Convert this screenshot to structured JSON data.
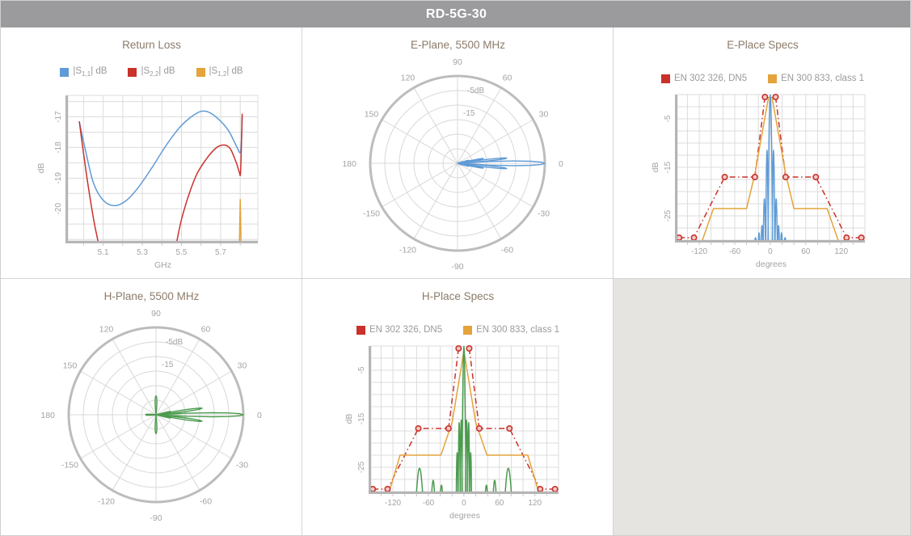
{
  "header": {
    "title": "RD-5G-30"
  },
  "colors": {
    "blue": "#5f9bd6",
    "red": "#c9322b",
    "orange": "#e4a33b",
    "green": "#4c9b4f",
    "grid": "#dcdcdc",
    "axis_bar": "#b5b5b5",
    "ring_thick": "#bcbcbc",
    "ring_thin": "#d8d8d8",
    "tick_text": "#a3a3a3",
    "title_text": "#8c7b6a",
    "legend_text": "#9a9a9a",
    "marker_fill": "#f2c9c5",
    "header_bg": "#9b9b9e",
    "empty_cell_bg": "#e6e4e1"
  },
  "chart_data": [
    {
      "id": "return_loss",
      "type": "line",
      "title": "Return Loss",
      "xlabel": "GHz",
      "ylabel": "dB",
      "xlim": [
        4.92,
        5.89
      ],
      "ylim": [
        -21.05,
        -16.3
      ],
      "xticks": [
        5.1,
        5.3,
        5.5,
        5.7
      ],
      "yticks": [
        -17,
        -18,
        -19,
        -20
      ],
      "xgrid": [
        5.0,
        5.1,
        5.2,
        5.3,
        5.4,
        5.5,
        5.6,
        5.7,
        5.8
      ],
      "ygrid": [
        -16.5,
        -17,
        -17.5,
        -18,
        -18.5,
        -19,
        -19.5,
        -20,
        -20.5,
        -21
      ],
      "legend": [
        {
          "label_pre": "|S",
          "label_sub": "1,1",
          "label_post": "| dB",
          "color": "blue"
        },
        {
          "label_pre": "|S",
          "label_sub": "2,2",
          "label_post": "| dB",
          "color": "red"
        },
        {
          "label_pre": "|S",
          "label_sub": "1,2",
          "label_post": "| dB",
          "color": "orange"
        }
      ],
      "series": [
        {
          "name": "S11",
          "color": "blue",
          "smooth": true,
          "points": [
            [
              4.978,
              -17.15
            ],
            [
              5.01,
              -18.1
            ],
            [
              5.05,
              -19.15
            ],
            [
              5.1,
              -19.72
            ],
            [
              5.16,
              -19.9
            ],
            [
              5.22,
              -19.72
            ],
            [
              5.28,
              -19.3
            ],
            [
              5.35,
              -18.65
            ],
            [
              5.42,
              -17.95
            ],
            [
              5.49,
              -17.35
            ],
            [
              5.55,
              -17.0
            ],
            [
              5.6,
              -16.82
            ],
            [
              5.64,
              -16.85
            ],
            [
              5.69,
              -17.08
            ],
            [
              5.74,
              -17.45
            ],
            [
              5.78,
              -17.95
            ],
            [
              5.8,
              -18.17
            ],
            [
              5.806,
              -17.8
            ],
            [
              5.81,
              -17.0
            ]
          ]
        },
        {
          "name": "S22",
          "color": "red",
          "smooth": true,
          "points": [
            [
              4.978,
              -17.15
            ],
            [
              5.0,
              -18.2
            ],
            [
              5.02,
              -19.1
            ],
            [
              5.05,
              -20.3
            ],
            [
              5.075,
              -21.1
            ]
          ]
        },
        {
          "name": "S22",
          "color": "red",
          "smooth": true,
          "points": [
            [
              5.475,
              -21.1
            ],
            [
              5.5,
              -20.35
            ],
            [
              5.54,
              -19.5
            ],
            [
              5.58,
              -18.85
            ],
            [
              5.63,
              -18.35
            ],
            [
              5.68,
              -18.0
            ],
            [
              5.72,
              -17.92
            ],
            [
              5.75,
              -18.05
            ],
            [
              5.78,
              -18.5
            ],
            [
              5.795,
              -18.8
            ],
            [
              5.802,
              -18.75
            ],
            [
              5.81,
              -16.9
            ]
          ]
        },
        {
          "name": "S12",
          "color": "orange",
          "smooth": false,
          "points": [
            [
              5.796,
              -21.1
            ],
            [
              5.8,
              -19.7
            ],
            [
              5.804,
              -21.1
            ]
          ]
        }
      ]
    },
    {
      "id": "e_plane",
      "type": "polar",
      "title": "E-Plane, 5500 MHz",
      "rings_db": [
        0,
        -5,
        -10,
        -15,
        -20,
        -25
      ],
      "min_db": -30,
      "spoke_step_deg": 30,
      "angle_labels": [
        0,
        30,
        60,
        90,
        120,
        150,
        180,
        -150,
        -120,
        -90,
        -60,
        -30
      ],
      "ring_labels": [
        {
          "text": "-5dB",
          "db": -5
        },
        {
          "text": "-15",
          "db": -15
        }
      ],
      "series": [
        {
          "name": "E-plane pattern",
          "color": "blue",
          "base": -30,
          "lobes": [
            [
              0,
              0,
              4
            ],
            [
              -6,
              -13,
              2.5
            ],
            [
              6,
              -13,
              2.5
            ],
            [
              -10.5,
              -21,
              2.2
            ],
            [
              10.5,
              -21,
              2.2
            ],
            [
              -15,
              -26,
              2
            ],
            [
              15,
              -26,
              2
            ],
            [
              -20,
              -28.5,
              2
            ],
            [
              20,
              -28.5,
              2
            ]
          ]
        }
      ]
    },
    {
      "id": "e_specs",
      "type": "line",
      "title": "E-Place Specs",
      "xlabel": "degrees",
      "ylabel": "dB",
      "xlim": [
        -157,
        160
      ],
      "ylim": [
        -30,
        0
      ],
      "xticks": [
        -120,
        -60,
        0,
        60,
        120
      ],
      "yticks": [
        -5,
        -15,
        -25
      ],
      "xgrid": [
        -140,
        -120,
        -100,
        -80,
        -60,
        -40,
        -20,
        0,
        20,
        40,
        60,
        80,
        100,
        120,
        140
      ],
      "ygrid": [
        0,
        -2.5,
        -5,
        -7.5,
        -10,
        -12.5,
        -15,
        -17.5,
        -20,
        -22.5,
        -25,
        -27.5,
        -30
      ],
      "legend": [
        {
          "label": "EN 302 326, DN5",
          "color": "red"
        },
        {
          "label": "EN 300 833, class 1",
          "color": "orange"
        }
      ],
      "series": [
        {
          "name": "EN 302 326, DN5",
          "color": "red",
          "dashdot": true,
          "markers": true,
          "points": [
            [
              -154,
              -29.5
            ],
            [
              -129,
              -29.5
            ],
            [
              -77,
              -17
            ],
            [
              -26,
              -17
            ],
            [
              -9,
              -0.5
            ]
          ]
        },
        {
          "name": "EN 302 326, DN5",
          "color": "red",
          "dashdot": true,
          "markers": true,
          "points": [
            [
              9,
              -0.5
            ],
            [
              26,
              -17
            ],
            [
              77,
              -17
            ],
            [
              129,
              -29.5
            ],
            [
              154,
              -29.5
            ]
          ]
        },
        {
          "name": "EN 300 833, class 1",
          "color": "orange",
          "points": [
            [
              -117,
              -30.8
            ],
            [
              -96,
              -23.5
            ],
            [
              -40,
              -23.5
            ],
            [
              -26,
              -16.3
            ],
            [
              -3,
              -0.6
            ],
            [
              3,
              -0.6
            ],
            [
              26,
              -16.3
            ],
            [
              40,
              -23.5
            ],
            [
              96,
              -23.5
            ],
            [
              117,
              -30.8
            ]
          ]
        },
        {
          "name": "measured pattern",
          "color": "blue",
          "base": -32,
          "lobes": [
            [
              0,
              0,
              4
            ],
            [
              -5.5,
              -11.5,
              2.2
            ],
            [
              5.5,
              -11.5,
              2.2
            ],
            [
              -10,
              -21.5,
              2
            ],
            [
              10,
              -21.5,
              2
            ],
            [
              -14,
              -27,
              1.7
            ],
            [
              14,
              -27,
              1.7
            ],
            [
              -19,
              -28.5,
              1.7
            ],
            [
              19,
              -28.5,
              1.7
            ],
            [
              -25,
              -29.5,
              2
            ],
            [
              25,
              -29.5,
              2
            ],
            [
              -32,
              -30.5,
              2.5
            ],
            [
              32,
              -30.5,
              2.5
            ],
            [
              -70,
              -30.3,
              3
            ],
            [
              70,
              -30.3,
              3
            ],
            [
              -82,
              -30.8,
              2.5
            ],
            [
              82,
              -30.8,
              2.5
            ]
          ]
        }
      ]
    },
    {
      "id": "h_plane",
      "type": "polar",
      "title": "H-Plane, 5500 MHz",
      "rings_db": [
        0,
        -5,
        -10,
        -15,
        -20,
        -25
      ],
      "min_db": -30,
      "spoke_step_deg": 30,
      "angle_labels": [
        0,
        30,
        60,
        90,
        120,
        150,
        180,
        -150,
        -120,
        -90,
        -60,
        -30
      ],
      "ring_labels": [
        {
          "text": "-5dB",
          "db": -5
        },
        {
          "text": "-15",
          "db": -15
        }
      ],
      "series": [
        {
          "name": "H-plane pattern",
          "color": "green",
          "base": -30,
          "lobes": [
            [
              0,
              0,
              3.5
            ],
            [
              -8,
              -14,
              3
            ],
            [
              8,
              -14,
              3
            ],
            [
              -13,
              -25,
              2
            ],
            [
              13,
              -25,
              2
            ],
            [
              -90,
              -23.5,
              7
            ],
            [
              90,
              -23.5,
              7
            ],
            [
              -178,
              -26.5,
              5
            ],
            [
              178,
              -26.5,
              5
            ]
          ]
        }
      ]
    },
    {
      "id": "h_specs",
      "type": "line",
      "title": "H-Place Specs",
      "xlabel": "degrees",
      "ylabel": "dB",
      "xlim": [
        -157,
        160
      ],
      "ylim": [
        -30,
        0
      ],
      "xticks": [
        -120,
        -60,
        0,
        60,
        120
      ],
      "yticks": [
        -5,
        -15,
        -25
      ],
      "xgrid": [
        -140,
        -120,
        -100,
        -80,
        -60,
        -40,
        -20,
        0,
        20,
        40,
        60,
        80,
        100,
        120,
        140
      ],
      "ygrid": [
        0,
        -2.5,
        -5,
        -7.5,
        -10,
        -12.5,
        -15,
        -17.5,
        -20,
        -22.5,
        -25,
        -27.5,
        -30
      ],
      "legend": [
        {
          "label": "EN 302 326, DN5",
          "color": "red"
        },
        {
          "label": "EN 300 833, class 1",
          "color": "orange"
        }
      ],
      "series": [
        {
          "name": "EN 302 326, DN5",
          "color": "red",
          "dashdot": true,
          "markers": true,
          "points": [
            [
              -154,
              -29.5
            ],
            [
              -129,
              -29.5
            ],
            [
              -77,
              -17
            ],
            [
              -26,
              -17
            ],
            [
              -9,
              -0.5
            ]
          ]
        },
        {
          "name": "EN 302 326, DN5",
          "color": "red",
          "dashdot": true,
          "markers": true,
          "points": [
            [
              9,
              -0.5
            ],
            [
              26,
              -17
            ],
            [
              77,
              -17
            ],
            [
              129,
              -29.5
            ],
            [
              154,
              -29.5
            ]
          ]
        },
        {
          "name": "EN 300 833, class 1",
          "color": "orange",
          "points": [
            [
              -128,
              -30.8
            ],
            [
              -108,
              -22.5
            ],
            [
              -39,
              -22.5
            ],
            [
              -20,
              -15.8
            ],
            [
              0,
              -1
            ],
            [
              20,
              -15.8
            ],
            [
              39,
              -22.5
            ],
            [
              108,
              -22.5
            ],
            [
              128,
              -30.8
            ]
          ]
        },
        {
          "name": "measured pattern",
          "color": "green",
          "base": -32,
          "lobes": [
            [
              0,
              0,
              3.5
            ],
            [
              -4.5,
              -15.3,
              1.8
            ],
            [
              4.5,
              -15.3,
              1.8
            ],
            [
              -8,
              -15.8,
              1.8
            ],
            [
              8,
              -15.8,
              1.8
            ],
            [
              -11.5,
              -22,
              1.5
            ],
            [
              11.5,
              -22,
              1.5
            ],
            [
              -38,
              -28.7,
              2.5
            ],
            [
              38,
              -28.7,
              2.5
            ],
            [
              -52,
              -27.7,
              3
            ],
            [
              52,
              -27.7,
              3
            ],
            [
              -75,
              -25.2,
              6
            ],
            [
              75,
              -25.2,
              6
            ]
          ]
        }
      ]
    }
  ]
}
